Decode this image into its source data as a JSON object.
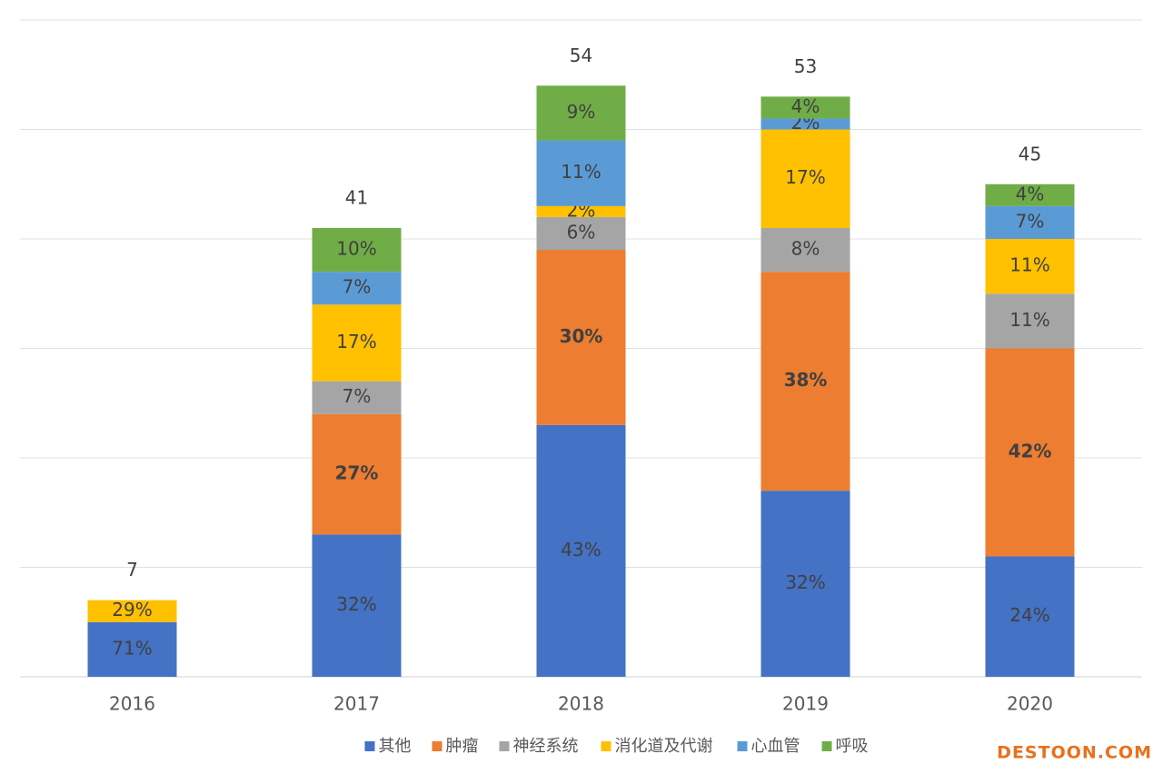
{
  "chart_data": {
    "type": "bar",
    "stacked": true,
    "categories": [
      "2016",
      "2017",
      "2018",
      "2019",
      "2020"
    ],
    "totals": [
      7,
      41,
      54,
      53,
      45
    ],
    "series": [
      {
        "name": "其他",
        "color": "#4472c4",
        "values": [
          5,
          13,
          23,
          17,
          11
        ],
        "value_labels": [
          "71%",
          "32%",
          "43%",
          "32%",
          "24%"
        ]
      },
      {
        "name": "肿瘤",
        "color": "#ed7d31",
        "bold": true,
        "values": [
          null,
          11,
          16,
          20,
          19
        ],
        "value_labels": [
          null,
          "27%",
          "30%",
          "38%",
          "42%"
        ]
      },
      {
        "name": "神经系统",
        "color": "#a5a5a5",
        "values": [
          null,
          3,
          3,
          4,
          5
        ],
        "value_labels": [
          null,
          "7%",
          "6%",
          "8%",
          "11%"
        ]
      },
      {
        "name": "消化道及代谢",
        "color": "#ffc000",
        "values": [
          2,
          7,
          1,
          9,
          5
        ],
        "value_labels": [
          "29%",
          "17%",
          "2%",
          "17%",
          "11%"
        ]
      },
      {
        "name": "心血管",
        "color": "#5b9bd5",
        "values": [
          null,
          3,
          6,
          1,
          3
        ],
        "value_labels": [
          null,
          "7%",
          "11%",
          "2%",
          "7%"
        ]
      },
      {
        "name": "呼吸",
        "color": "#70ad47",
        "values": [
          null,
          4,
          5,
          2,
          2
        ],
        "value_labels": [
          null,
          "10%",
          "9%",
          "4%",
          "4%"
        ]
      }
    ],
    "ylim": [
      0,
      60
    ],
    "yticks": [
      0,
      10,
      20,
      30,
      40,
      50,
      60
    ],
    "ytick_labels": false,
    "grid": true,
    "legend": "bottom"
  },
  "watermark": "DESTOON.COM"
}
